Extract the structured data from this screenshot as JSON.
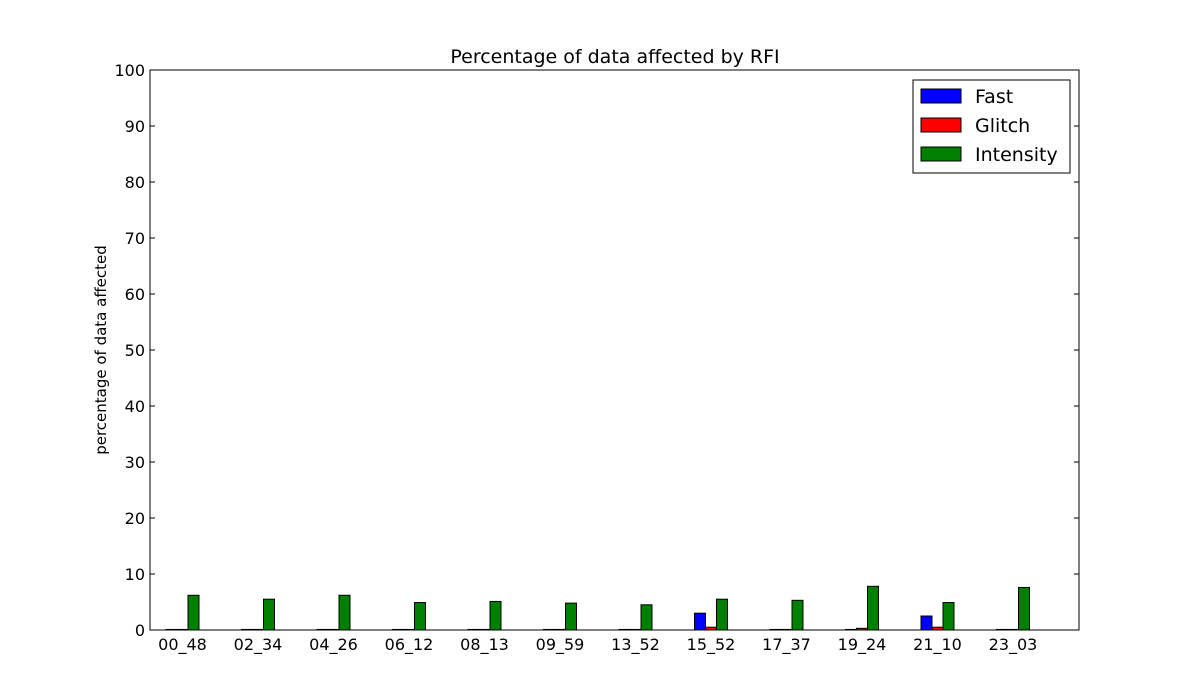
{
  "chart_data": {
    "type": "bar",
    "title": "Percentage of data affected by RFI",
    "xlabel": "",
    "ylabel": "percentage of data affected",
    "ylim": [
      0,
      100
    ],
    "yticks": [
      "0",
      "10",
      "20",
      "30",
      "40",
      "50",
      "60",
      "70",
      "80",
      "90",
      "100"
    ],
    "grid": false,
    "legend_position": "top-right",
    "categories": [
      "00_48",
      "02_34",
      "04_26",
      "06_12",
      "08_13",
      "09_59",
      "13_52",
      "15_52",
      "17_37",
      "19_24",
      "21_10",
      "23_03"
    ],
    "series": [
      {
        "name": "Fast",
        "color": "#0000ff",
        "values": [
          0.1,
          0.1,
          0.1,
          0.1,
          0.1,
          0.1,
          0.1,
          3.0,
          0.1,
          0.1,
          2.5,
          0.1
        ]
      },
      {
        "name": "Glitch",
        "color": "#ff0000",
        "values": [
          0.1,
          0.1,
          0.1,
          0.1,
          0.1,
          0.1,
          0.1,
          0.5,
          0.1,
          0.3,
          0.5,
          0.1
        ]
      },
      {
        "name": "Intensity",
        "color": "#008000",
        "values": [
          6.2,
          5.5,
          6.2,
          4.9,
          5.1,
          4.8,
          4.5,
          5.5,
          5.3,
          7.8,
          4.9,
          7.6
        ]
      }
    ]
  }
}
